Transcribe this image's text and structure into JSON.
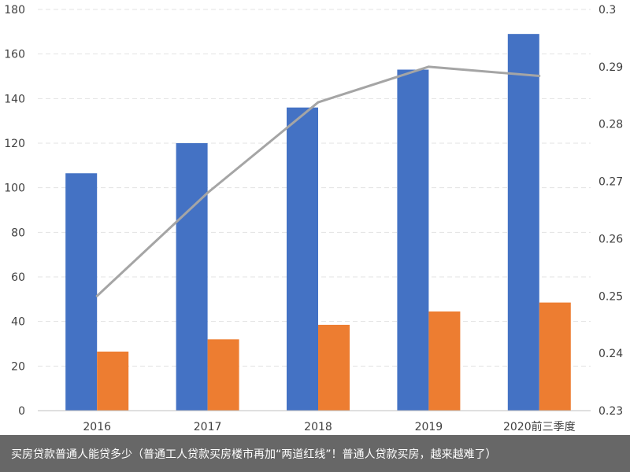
{
  "chart_data": {
    "type": "bar",
    "categories": [
      "2016",
      "2017",
      "2018",
      "2019",
      "2020前三季度"
    ],
    "series": [
      {
        "kind": "bar",
        "axis": "left",
        "color": "#4472c4",
        "values": [
          106.5,
          120,
          136,
          153,
          169
        ]
      },
      {
        "kind": "bar",
        "axis": "left",
        "color": "#ed7d31",
        "values": [
          26.5,
          32,
          38.5,
          44.5,
          48.5
        ]
      },
      {
        "kind": "line",
        "axis": "right",
        "color": "#a5a5a5",
        "values": [
          0.25,
          0.268,
          0.2838,
          0.29,
          0.2884
        ]
      }
    ],
    "left_axis": {
      "min": 0,
      "max": 180,
      "step": 20,
      "ticks": [
        "0",
        "20",
        "40",
        "60",
        "80",
        "100",
        "120",
        "140",
        "160",
        "180"
      ]
    },
    "right_axis": {
      "min": 0.23,
      "max": 0.3,
      "step": 0.01,
      "ticks": [
        "0.23",
        "0.24",
        "0.25",
        "0.26",
        "0.27",
        "0.28",
        "0.29",
        "0.3"
      ]
    },
    "grid": true,
    "gridline_color": "#e3e3e3",
    "axis_line_color": "#bfbfbf"
  },
  "caption": {
    "text": "买房贷款普通人能贷多少（普通工人贷款买房楼市再加“两道红线”！普通人贷款买房，越来越难了）"
  }
}
